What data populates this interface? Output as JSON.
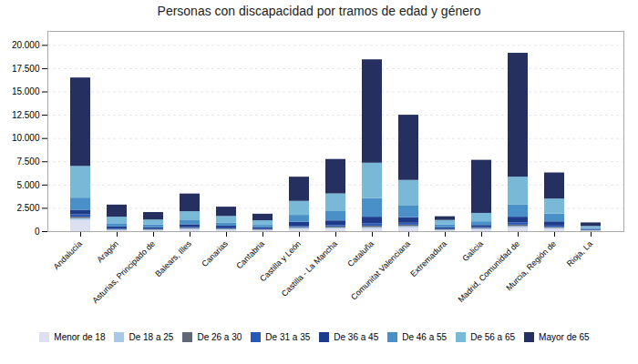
{
  "chart_data": {
    "type": "bar",
    "stacked": true,
    "grid": true,
    "legend": "bottom",
    "title": "Personas con discapacidad por tramos de edad y género",
    "categories": [
      "Andalucía",
      "Aragón",
      "Asturias, Principado de",
      "Balears, Illes",
      "Canarias",
      "Cantabria",
      "Castilla y León",
      "Castilla - La Mancha",
      "Cataluña",
      "Comunitat Valenciana",
      "Extremadura",
      "Galicia",
      "Madrid, Comunidad de",
      "Murcia, Región de",
      "Rioja, La"
    ],
    "series": [
      {
        "name": "Menor de 18",
        "color": "#dce0f0",
        "values": [
          1200,
          100,
          100,
          200,
          150,
          100,
          250,
          300,
          300,
          400,
          100,
          200,
          400,
          250,
          50
        ]
      },
      {
        "name": "De 18 a 25",
        "color": "#a8c8e8",
        "values": [
          200,
          60,
          50,
          80,
          70,
          50,
          100,
          100,
          150,
          150,
          50,
          80,
          150,
          100,
          30
        ]
      },
      {
        "name": "De 26 a 30",
        "color": "#606878",
        "values": [
          150,
          60,
          50,
          80,
          70,
          50,
          80,
          100,
          150,
          150,
          50,
          80,
          150,
          100,
          25
        ]
      },
      {
        "name": "De 31 a 35",
        "color": "#2858b8",
        "values": [
          250,
          80,
          70,
          100,
          90,
          70,
          120,
          150,
          250,
          200,
          70,
          100,
          250,
          150,
          40
        ]
      },
      {
        "name": "De 36 a 45",
        "color": "#1e3a8a",
        "values": [
          500,
          200,
          150,
          280,
          200,
          150,
          450,
          500,
          700,
          600,
          150,
          200,
          600,
          450,
          80
        ]
      },
      {
        "name": "De 46 a 55",
        "color": "#4a90c8",
        "values": [
          1300,
          350,
          280,
          500,
          350,
          250,
          750,
          1000,
          2000,
          1300,
          280,
          400,
          1300,
          850,
          130
        ]
      },
      {
        "name": "De 56 a 65",
        "color": "#7ab8d8",
        "values": [
          3400,
          700,
          550,
          900,
          700,
          500,
          1500,
          1900,
          3800,
          2700,
          500,
          900,
          3000,
          1600,
          200
        ]
      },
      {
        "name": "Mayor de 65",
        "color": "#253060",
        "values": [
          9500,
          1300,
          800,
          1900,
          1000,
          700,
          2600,
          3700,
          11100,
          7000,
          400,
          5700,
          13300,
          2800,
          380
        ]
      }
    ],
    "ylim": [
      0,
      21500
    ],
    "yticks": [
      0,
      {
        "value": 2500,
        "label": "2.500"
      },
      {
        "value": 5000,
        "label": "5.000"
      },
      {
        "value": 7500,
        "label": "7.500"
      },
      {
        "value": 10000,
        "label": "10.000"
      },
      {
        "value": 12500,
        "label": "12.500"
      },
      {
        "value": 15000,
        "label": "15.000"
      },
      {
        "value": 17500,
        "label": "17.500"
      },
      {
        "value": 20000,
        "label": "20.000"
      }
    ]
  }
}
